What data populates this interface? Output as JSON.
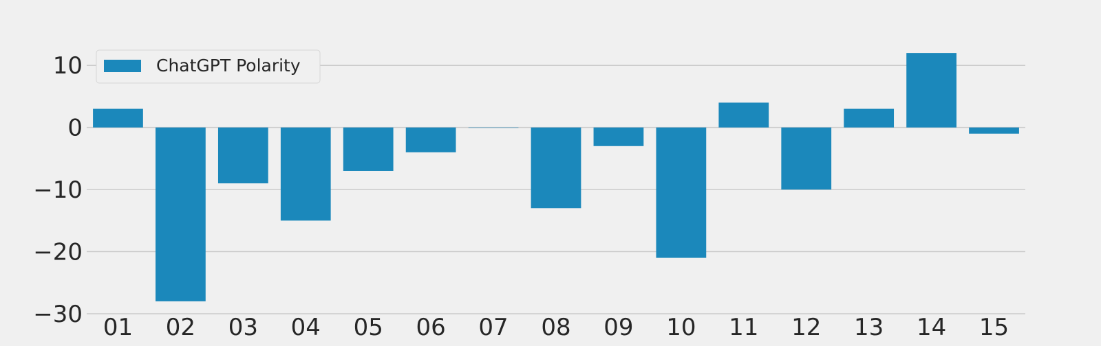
{
  "chart_data": {
    "type": "bar",
    "title": "",
    "xlabel": "",
    "ylabel": "",
    "categories": [
      "01",
      "02",
      "03",
      "04",
      "05",
      "06",
      "07",
      "08",
      "09",
      "10",
      "11",
      "12",
      "13",
      "14",
      "15"
    ],
    "series": [
      {
        "name": "ChatGPT Polarity",
        "color": "#1b88bb",
        "values": [
          3,
          -28,
          -9,
          -15,
          -7,
          -4,
          0,
          -13,
          -3,
          -21,
          4,
          -10,
          3,
          12,
          -1
        ]
      }
    ],
    "ylim": [
      -30,
      15
    ],
    "yticks": [
      10,
      0,
      -10,
      -20,
      -30
    ],
    "ytick_labels": [
      "10",
      "0",
      "−10",
      "−20",
      "−30"
    ],
    "grid": "horizontal",
    "legend_position": "top-left",
    "background_color": "#f0f0f0",
    "grid_color": "#cbcbcb",
    "text_color": "#262626"
  }
}
